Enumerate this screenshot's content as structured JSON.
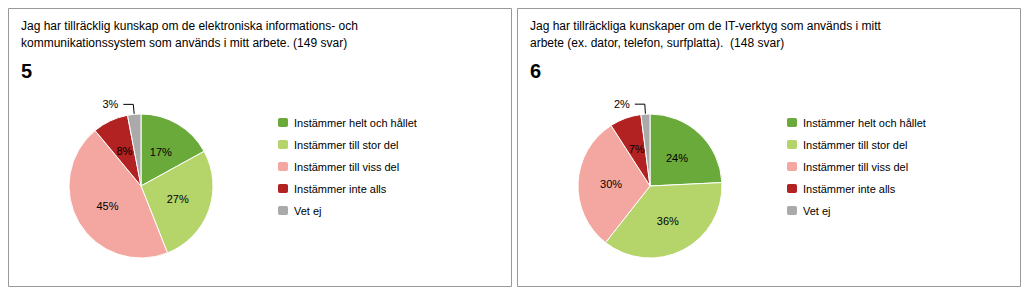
{
  "chart_data": [
    {
      "type": "pie",
      "title": "Jag har tillräcklig kunskap om de elektroniska informations- och\nkommunikationssystem som används i mitt arbete. (149 svar)",
      "annotations": [
        "5"
      ],
      "categories": [
        "Instämmer helt och hållet",
        "Instämmer till stor del",
        "Instämmer till viss del",
        "Instämmer inte alls",
        "Vet ej"
      ],
      "values": [
        17,
        27,
        45,
        8,
        3
      ],
      "value_labels": [
        "17%",
        "27%",
        "45%",
        "8%",
        "3%"
      ],
      "colors": [
        "#6aaa3a",
        "#b5d46a",
        "#f4a7a0",
        "#b22222",
        "#aaaaaa"
      ],
      "data_labels": true,
      "legend": "right"
    },
    {
      "type": "pie",
      "title": "Jag har tillräckliga kunskaper om de IT-verktyg som används i mitt\narbete (ex. dator, telefon, surfplatta).  (148 svar)",
      "annotations": [
        "6"
      ],
      "categories": [
        "Instämmer helt och hållet",
        "Instämmer till stor del",
        "Instämmer till viss del",
        "Instämmer inte alls",
        "Vet ej"
      ],
      "values": [
        24,
        36,
        30,
        7,
        2
      ],
      "value_labels": [
        "24%",
        "36%",
        "30%",
        "7%",
        "2%"
      ],
      "colors": [
        "#6aaa3a",
        "#b5d46a",
        "#f4a7a0",
        "#b22222",
        "#aaaaaa"
      ],
      "data_labels": true,
      "legend": "right"
    }
  ]
}
